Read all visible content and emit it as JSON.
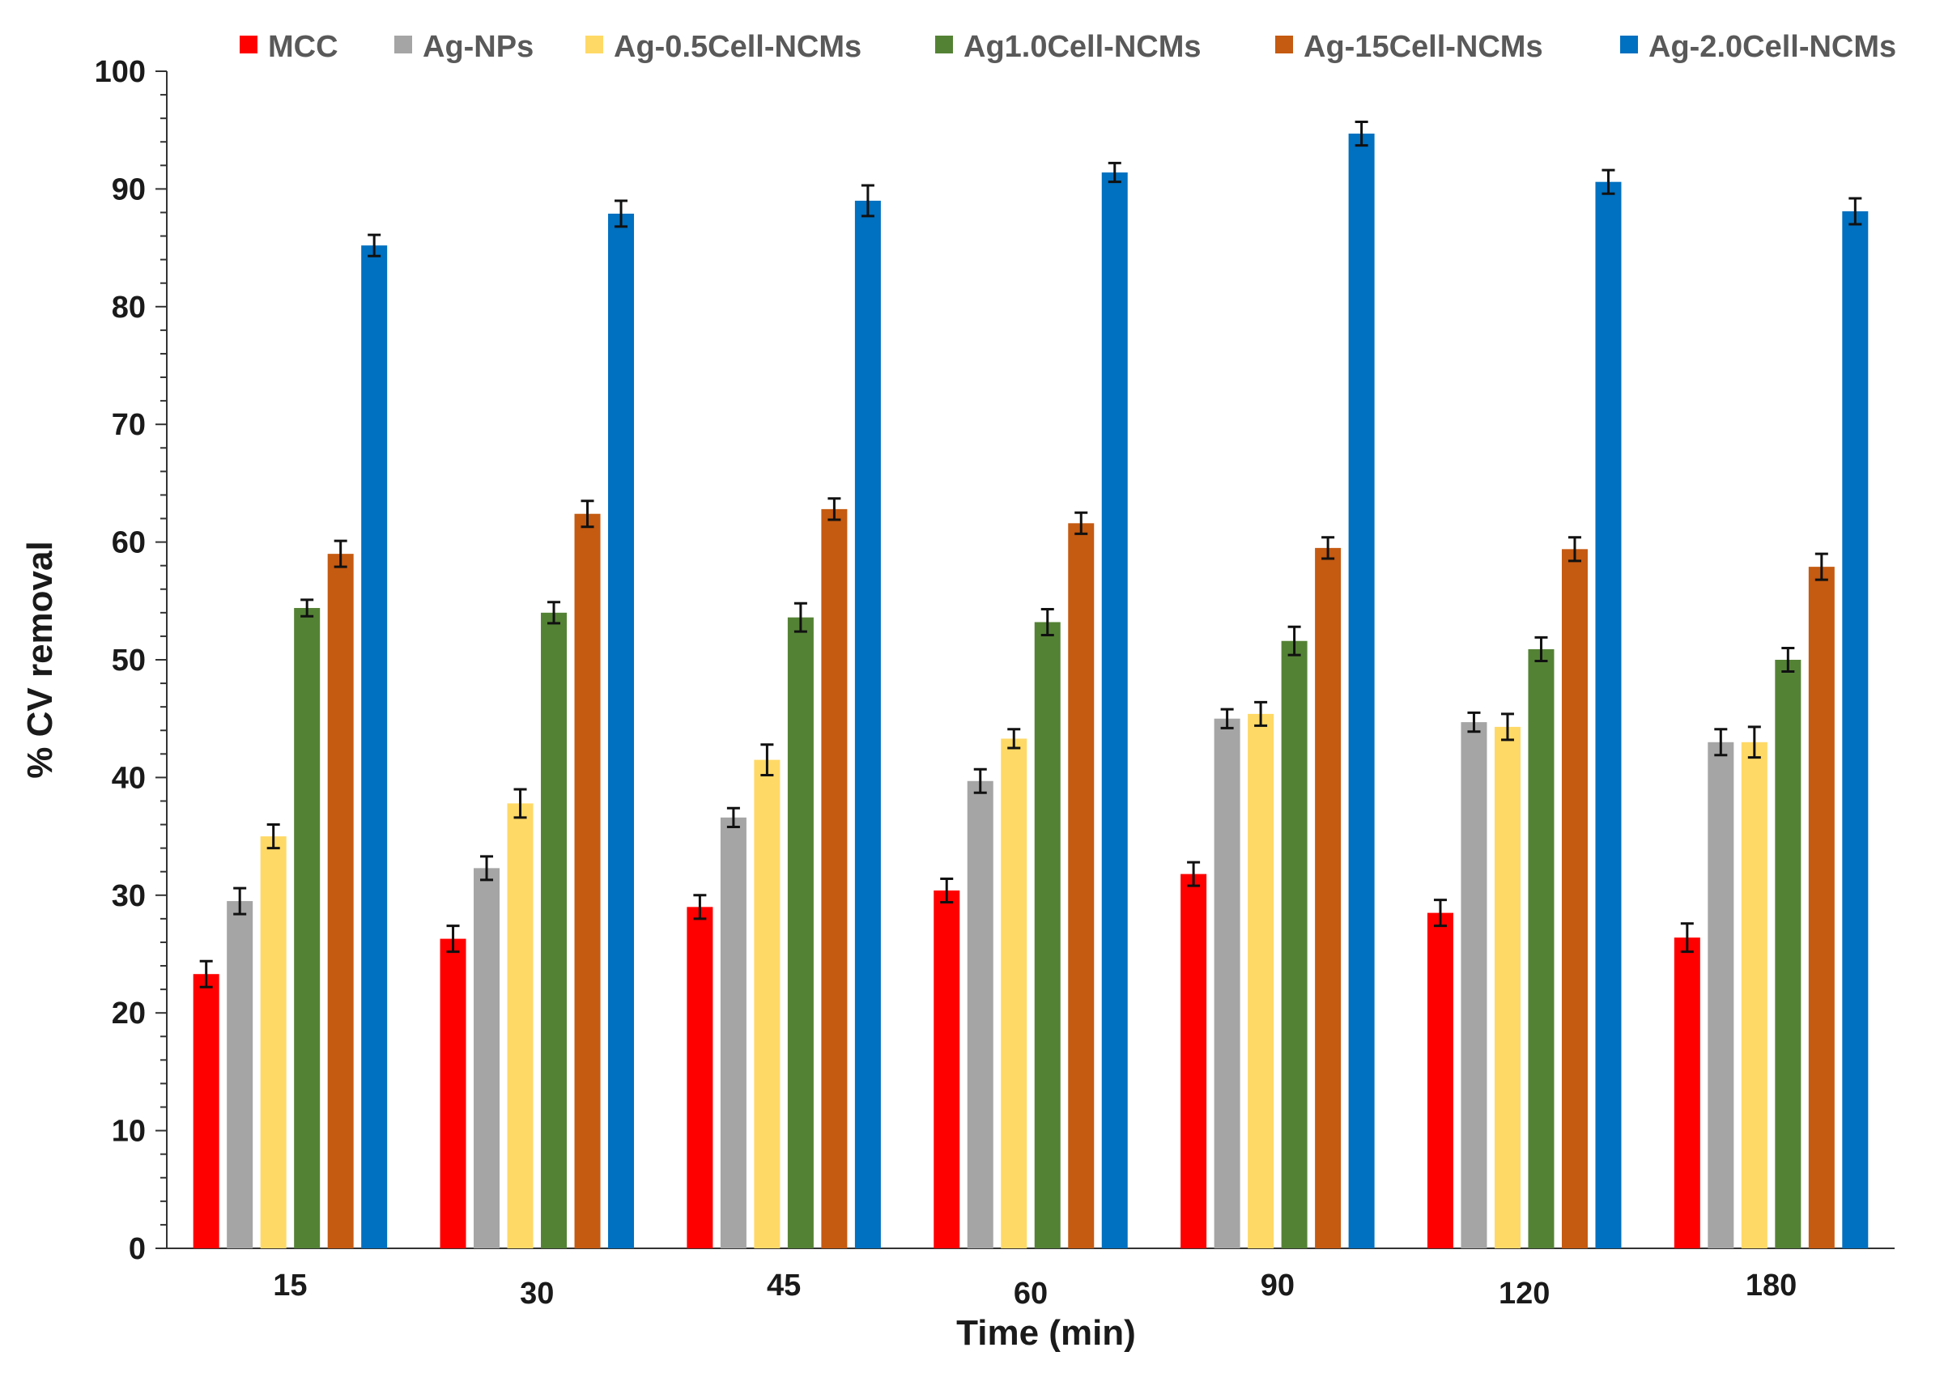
{
  "chart_data": {
    "type": "bar",
    "title": "",
    "xlabel": "Time (min)",
    "ylabel": "% CV removal",
    "ylim": [
      0,
      100
    ],
    "yticks": [
      0,
      10,
      20,
      30,
      40,
      50,
      60,
      70,
      80,
      90,
      100
    ],
    "ytick_labels": [
      "0",
      "10",
      "20",
      "30",
      "40",
      "50",
      "60",
      "70",
      "80",
      "90",
      "100"
    ],
    "y_minor_step": 2,
    "grid": false,
    "legend_position": "top",
    "error_bars": true,
    "categories": [
      "15",
      "30",
      "45",
      "60",
      "90",
      "120",
      "180"
    ],
    "series": [
      {
        "name": "MCC",
        "color": "#ff0000",
        "values": [
          23.3,
          26.3,
          29.0,
          30.4,
          31.8,
          28.5,
          26.4
        ],
        "errors": [
          1.1,
          1.1,
          1.0,
          1.0,
          1.0,
          1.1,
          1.2
        ]
      },
      {
        "name": "Ag-NPs",
        "color": "#a5a5a5",
        "values": [
          29.5,
          32.3,
          36.6,
          39.7,
          45.0,
          44.7,
          43.0
        ],
        "errors": [
          1.1,
          1.0,
          0.8,
          1.0,
          0.8,
          0.8,
          1.1
        ]
      },
      {
        "name": "Ag-0.5Cell-NCMs",
        "color": "#ffd966",
        "values": [
          35.0,
          37.8,
          41.5,
          43.3,
          45.4,
          44.3,
          43.0
        ],
        "errors": [
          1.0,
          1.2,
          1.3,
          0.8,
          1.0,
          1.1,
          1.3
        ]
      },
      {
        "name": "Ag1.0Cell-NCMs",
        "color": "#548235",
        "values": [
          54.4,
          54.0,
          53.6,
          53.2,
          51.6,
          50.9,
          50.0
        ],
        "errors": [
          0.7,
          0.9,
          1.2,
          1.1,
          1.2,
          1.0,
          1.0
        ]
      },
      {
        "name": "Ag-15Cell-NCMs",
        "color": "#c55a11",
        "values": [
          59.0,
          62.4,
          62.8,
          61.6,
          59.5,
          59.4,
          57.9
        ],
        "errors": [
          1.1,
          1.1,
          0.9,
          0.9,
          0.9,
          1.0,
          1.1
        ]
      },
      {
        "name": "Ag-2.0Cell-NCMs",
        "color": "#0070c0",
        "values": [
          85.2,
          87.9,
          89.0,
          91.4,
          94.7,
          90.6,
          88.1
        ],
        "errors": [
          0.9,
          1.1,
          1.3,
          0.8,
          1.0,
          1.0,
          1.1
        ]
      }
    ]
  }
}
